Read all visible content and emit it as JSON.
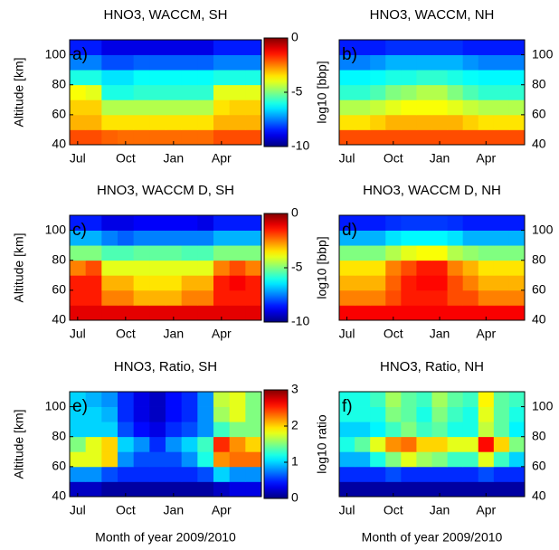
{
  "chart_data": [
    {
      "type": "heatmap",
      "title": "HNO3, WACCM, SH",
      "panel_label": "a)",
      "colormap": "jet",
      "categories": [
        "Jul",
        null,
        null,
        "Oct",
        null,
        null,
        "Jan",
        null,
        null,
        "Apr",
        null,
        null
      ],
      "y": [
        45,
        55,
        65,
        75,
        85,
        95,
        105
      ],
      "ylim": [
        40,
        110
      ],
      "yticks": [
        40,
        60,
        80,
        100
      ],
      "ylabel": "Altitude [km]",
      "clim": [
        -10,
        0
      ],
      "colorbar": {
        "label": "log10 [bbp]",
        "ticks": [
          0,
          -5,
          -10
        ]
      },
      "values": [
        [
          -2,
          -2,
          -2.2,
          -2.3,
          -2.3,
          -2.3,
          -2.3,
          -2.3,
          -2.3,
          -2,
          -2,
          -2
        ],
        [
          -3,
          -3,
          -3.5,
          -3.5,
          -3.5,
          -3.5,
          -3.5,
          -3.5,
          -3.5,
          -3,
          -3,
          -3
        ],
        [
          -3.3,
          -3.3,
          -4.5,
          -4.5,
          -4.5,
          -4.5,
          -4.5,
          -4.5,
          -4.5,
          -3.5,
          -3.3,
          -3.3
        ],
        [
          -3.8,
          -4,
          -6,
          -6,
          -5.8,
          -5.8,
          -5.8,
          -5.8,
          -5.8,
          -4,
          -4,
          -4
        ],
        [
          -6,
          -6,
          -6.5,
          -6.5,
          -6.2,
          -6.2,
          -6.2,
          -6.2,
          -6.2,
          -6,
          -6,
          -6
        ],
        [
          -7.5,
          -7.5,
          -8,
          -8,
          -7.8,
          -7.8,
          -7.8,
          -7.8,
          -7.8,
          -7.5,
          -7.5,
          -7.5
        ],
        [
          -8.5,
          -8.5,
          -9,
          -9,
          -9,
          -9,
          -9,
          -9,
          -9,
          -8.5,
          -8.5,
          -8.5
        ]
      ]
    },
    {
      "type": "heatmap",
      "title": "HNO3, WACCM, NH",
      "panel_label": "b)",
      "colormap": "jet",
      "categories": [
        "Jul",
        null,
        null,
        "Oct",
        null,
        null,
        "Jan",
        null,
        null,
        "Apr",
        null,
        null
      ],
      "y": [
        45,
        55,
        65,
        75,
        85,
        95,
        105
      ],
      "ylim": [
        40,
        110
      ],
      "yticks": [
        40,
        60,
        80,
        100
      ],
      "clim": [
        -10,
        0
      ],
      "values": [
        [
          -2,
          -2,
          -2,
          -2,
          -2,
          -2,
          -2,
          -2,
          -2,
          -2,
          -2,
          -2
        ],
        [
          -3.5,
          -3.5,
          -3.3,
          -3,
          -3,
          -3,
          -3,
          -3,
          -3.3,
          -3.5,
          -3.5,
          -3.5
        ],
        [
          -4.5,
          -4.5,
          -4.3,
          -4,
          -3.8,
          -3.8,
          -3.8,
          -4,
          -4.3,
          -4.5,
          -4.5,
          -4.5
        ],
        [
          -5.8,
          -5.8,
          -5.5,
          -5,
          -4.8,
          -4.5,
          -4.5,
          -5,
          -5.5,
          -5.8,
          -5.8,
          -5.8
        ],
        [
          -6.3,
          -6.3,
          -6.2,
          -6,
          -6,
          -5.8,
          -5.8,
          -6,
          -6.2,
          -6.3,
          -6.3,
          -6.3
        ],
        [
          -7.5,
          -7.5,
          -7.3,
          -7,
          -7,
          -7,
          -7,
          -7,
          -7.3,
          -7.5,
          -7.5,
          -7.5
        ],
        [
          -8.5,
          -8.5,
          -8.5,
          -8.3,
          -8.3,
          -8.3,
          -8.3,
          -8.3,
          -8.5,
          -8.5,
          -8.5,
          -8.5
        ]
      ]
    },
    {
      "type": "heatmap",
      "title": "HNO3, WACCM D, SH",
      "panel_label": "c)",
      "colormap": "jet",
      "categories": [
        "Jul",
        null,
        null,
        "Oct",
        null,
        null,
        "Jan",
        null,
        null,
        "Apr",
        null,
        null
      ],
      "y": [
        45,
        55,
        65,
        75,
        85,
        95,
        105
      ],
      "ylim": [
        40,
        110
      ],
      "yticks": [
        40,
        60,
        80,
        100
      ],
      "ylabel": "Altitude [km]",
      "clim": [
        -10,
        0
      ],
      "colorbar": {
        "label": "log10 [bbp]",
        "ticks": [
          0,
          -5,
          -10
        ]
      },
      "values": [
        [
          -1,
          -1,
          -1,
          -1,
          -1,
          -1,
          -1,
          -1,
          -1,
          -1,
          -1,
          -1
        ],
        [
          -1.5,
          -1.5,
          -2.5,
          -2.5,
          -3,
          -3,
          -3,
          -2.5,
          -2.5,
          -1.5,
          -1.5,
          -1.5
        ],
        [
          -1.5,
          -1.5,
          -3,
          -3,
          -3.5,
          -3.5,
          -3.5,
          -3,
          -3,
          -1.5,
          -1.2,
          -1.5
        ],
        [
          -2.5,
          -2,
          -4,
          -4,
          -4,
          -4,
          -4,
          -4,
          -4,
          -2.5,
          -2,
          -2.5
        ],
        [
          -5,
          -5,
          -5.5,
          -5.5,
          -5.3,
          -5.3,
          -5.3,
          -5.5,
          -5.5,
          -5,
          -5,
          -5
        ],
        [
          -7,
          -7,
          -7.5,
          -7.8,
          -7.5,
          -7.5,
          -7.5,
          -7.5,
          -7.5,
          -7,
          -7,
          -7
        ],
        [
          -8.5,
          -8.5,
          -9,
          -9,
          -8.8,
          -8.8,
          -8.8,
          -8.8,
          -9,
          -8.5,
          -8.5,
          -8.5
        ]
      ]
    },
    {
      "type": "heatmap",
      "title": "HNO3, WACCM D, NH",
      "panel_label": "d)",
      "colormap": "jet",
      "categories": [
        "Jul",
        null,
        null,
        "Oct",
        null,
        null,
        "Jan",
        null,
        null,
        "Apr",
        null,
        null
      ],
      "y": [
        45,
        55,
        65,
        75,
        85,
        95,
        105
      ],
      "ylim": [
        40,
        110
      ],
      "yticks": [
        40,
        60,
        80,
        100
      ],
      "clim": [
        -10,
        0
      ],
      "values": [
        [
          -1.2,
          -1.2,
          -1.2,
          -1.2,
          -1.2,
          -1.2,
          -1.2,
          -1.2,
          -1.2,
          -1.2,
          -1.2,
          -1.2
        ],
        [
          -2.5,
          -2.5,
          -2.5,
          -2,
          -1.5,
          -1.5,
          -1.5,
          -2,
          -2,
          -2.5,
          -2.5,
          -2.5
        ],
        [
          -3,
          -3,
          -3,
          -2.2,
          -1.5,
          -1.3,
          -1.3,
          -2,
          -2.5,
          -3,
          -3,
          -3
        ],
        [
          -3.5,
          -3.5,
          -3.5,
          -2.5,
          -2,
          -1.5,
          -1.5,
          -2.5,
          -3,
          -3.5,
          -3.5,
          -3.5
        ],
        [
          -5,
          -5,
          -5,
          -4.5,
          -4,
          -3.8,
          -3.8,
          -4.5,
          -4.8,
          -5,
          -5,
          -5
        ],
        [
          -7,
          -7,
          -7,
          -6.5,
          -6.3,
          -6.3,
          -6.3,
          -6.5,
          -7,
          -7,
          -7,
          -7
        ],
        [
          -8.5,
          -8.5,
          -8.5,
          -8.3,
          -8.2,
          -8.2,
          -8.2,
          -8.3,
          -8.5,
          -8.5,
          -8.5,
          -8.5
        ]
      ]
    },
    {
      "type": "heatmap",
      "title": "HNO3, Ratio, SH",
      "panel_label": "e)",
      "colormap": "jet",
      "categories": [
        "Jul",
        null,
        null,
        "Oct",
        null,
        null,
        "Jan",
        null,
        null,
        "Apr",
        null,
        null
      ],
      "y": [
        45,
        55,
        65,
        75,
        85,
        95,
        105
      ],
      "ylim": [
        40,
        110
      ],
      "yticks": [
        40,
        60,
        80,
        100
      ],
      "ylabel": "Altitude [km]",
      "xlabel": "Month of year 2009/2010",
      "clim": [
        0,
        3
      ],
      "colorbar": {
        "label": "log10 ratio",
        "ticks": [
          3,
          2,
          1,
          0
        ]
      },
      "values": [
        [
          0.2,
          0.2,
          0.1,
          0.1,
          0.1,
          0.1,
          0.1,
          0.1,
          0.1,
          0.2,
          0.3,
          0.3
        ],
        [
          0.8,
          0.8,
          0.6,
          0.5,
          0.5,
          0.5,
          0.5,
          0.5,
          0.6,
          1,
          0.8,
          0.8
        ],
        [
          1.8,
          1.8,
          2,
          0.8,
          0.6,
          0.6,
          0.6,
          0.8,
          1.2,
          2.2,
          2.3,
          2.3
        ],
        [
          1.5,
          1.8,
          2,
          1,
          0.8,
          0.5,
          0.8,
          1,
          1.3,
          2.5,
          2.2,
          2
        ],
        [
          1,
          1,
          1,
          0.6,
          0.4,
          0.3,
          0.5,
          0.6,
          0.8,
          1.3,
          1.5,
          1.5
        ],
        [
          1,
          1,
          0.9,
          0.5,
          0.3,
          0.2,
          0.4,
          0.5,
          0.8,
          1.6,
          1.8,
          1.5
        ],
        [
          1,
          0.9,
          0.8,
          0.5,
          0.3,
          0.2,
          0.4,
          0.5,
          0.8,
          1.7,
          1.8,
          1.5
        ]
      ]
    },
    {
      "type": "heatmap",
      "title": "HNO3, Ratio, NH",
      "panel_label": "f)",
      "colormap": "jet",
      "categories": [
        "Jul",
        null,
        null,
        "Oct",
        null,
        null,
        "Jan",
        null,
        null,
        "Apr",
        null,
        null
      ],
      "y": [
        45,
        55,
        65,
        75,
        85,
        95,
        105
      ],
      "ylim": [
        40,
        110
      ],
      "yticks": [
        40,
        60,
        80,
        100
      ],
      "xlabel": "Month of year 2009/2010",
      "clim": [
        0,
        3
      ],
      "values": [
        [
          0.1,
          0.1,
          0.1,
          0.1,
          0.1,
          0.1,
          0.1,
          0.1,
          0.1,
          0.1,
          0.1,
          0.1
        ],
        [
          0.5,
          0.5,
          0.5,
          0.6,
          0.5,
          0.5,
          0.5,
          0.5,
          0.5,
          0.6,
          0.5,
          0.5
        ],
        [
          0.9,
          0.9,
          1.2,
          1.5,
          1.8,
          1.6,
          1.5,
          1.3,
          1.3,
          1.8,
          1.3,
          1
        ],
        [
          1.2,
          1.4,
          1.8,
          2.2,
          2.3,
          2,
          2,
          1.8,
          1.8,
          2.6,
          2,
          1.5
        ],
        [
          1,
          1,
          1.1,
          1.3,
          1.5,
          1.3,
          1.4,
          1.2,
          1.2,
          1.7,
          1.4,
          1.1
        ],
        [
          1.2,
          1.2,
          1.2,
          1.5,
          1.4,
          1.2,
          1.5,
          1.3,
          1.2,
          1.8,
          1.4,
          1.2
        ],
        [
          1.2,
          1.2,
          1.3,
          1.6,
          1.4,
          1.3,
          1.6,
          1.4,
          1.3,
          1.9,
          1.4,
          1.3
        ]
      ]
    }
  ]
}
